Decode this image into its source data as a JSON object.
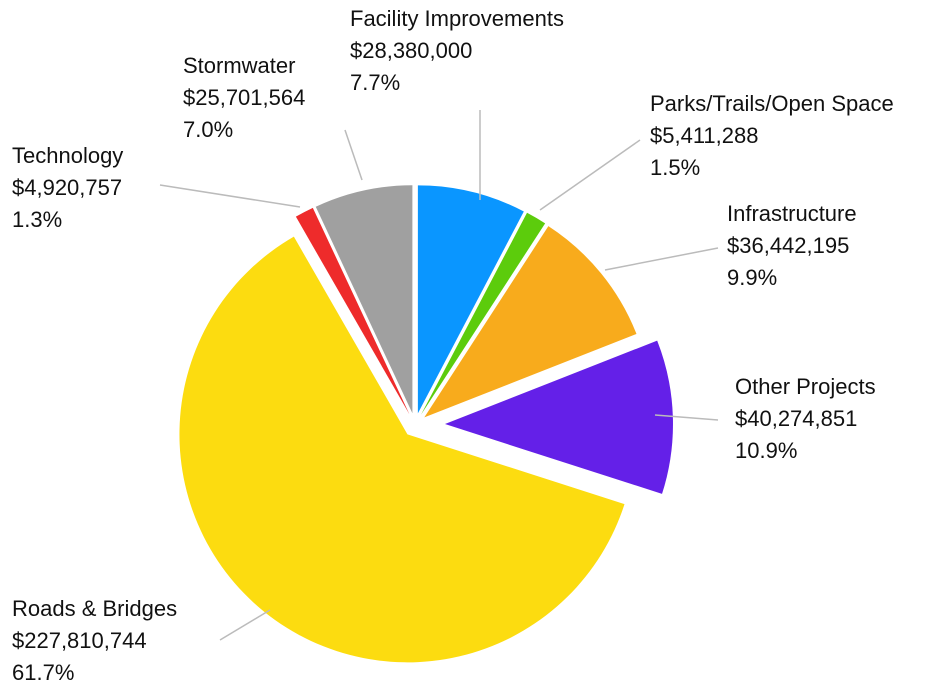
{
  "chart_data": {
    "type": "pie",
    "categories": [
      "Facility Improvements",
      "Parks/Trails/Open Space",
      "Infrastructure",
      "Other Projects",
      "Roads & Bridges",
      "Technology",
      "Stormwater"
    ],
    "values": [
      28380000,
      5411288,
      36442195,
      40274851,
      227810744,
      4920757,
      25701564
    ],
    "value_labels": [
      "$28,380,000",
      "$5,411,288",
      "$36,442,195",
      "$40,274,851",
      "$227,810,744",
      "$4,920,757",
      "$25,701,564"
    ],
    "percent_labels": [
      "7.7%",
      "1.5%",
      "9.9%",
      "10.9%",
      "61.7%",
      "1.3%",
      "7.0%"
    ],
    "colors": [
      "#0a96ff",
      "#5ccc0c",
      "#f8ab1c",
      "#6420e8",
      "#fcdc10",
      "#ee2b2b",
      "#a0a0a0"
    ]
  }
}
